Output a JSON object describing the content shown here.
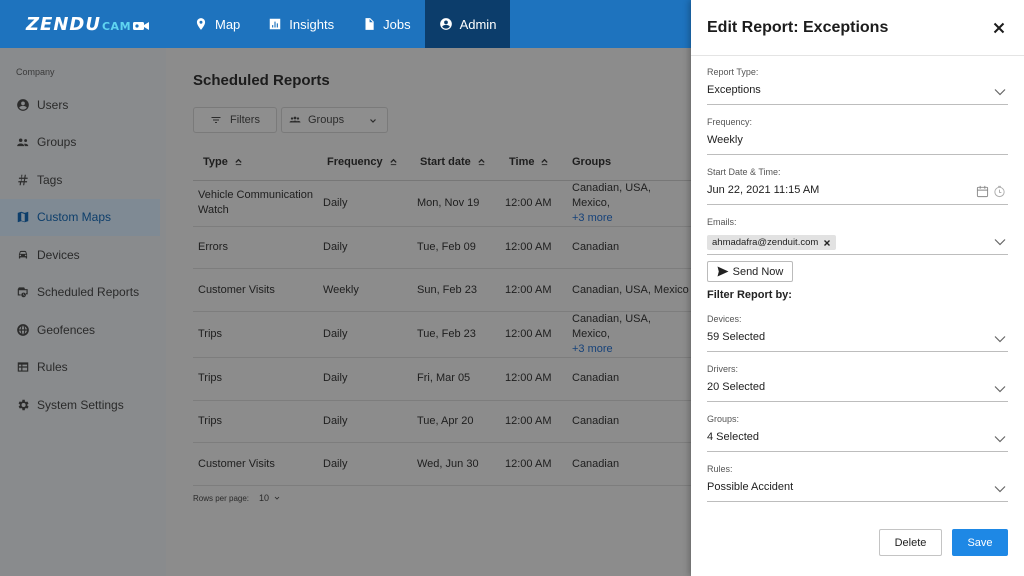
{
  "brand": {
    "main": "ZENDU",
    "sub": "CAM"
  },
  "colors": {
    "topbar": "#1e73be",
    "nav_active": "#0c3d6b",
    "primary_button": "#1e88e5",
    "link": "#16427a"
  },
  "nav": [
    {
      "label": "Map",
      "icon": "map-pin-icon"
    },
    {
      "label": "Insights",
      "icon": "bar-chart-icon"
    },
    {
      "label": "Jobs",
      "icon": "document-icon"
    },
    {
      "label": "Admin",
      "icon": "account-icon",
      "active": true
    }
  ],
  "sidebar": {
    "heading": "Company",
    "items": [
      {
        "label": "Users",
        "icon": "user-icon"
      },
      {
        "label": "Groups",
        "icon": "people-icon"
      },
      {
        "label": "Tags",
        "icon": "hash-icon"
      },
      {
        "label": "Custom Maps",
        "icon": "map-icon",
        "active": true
      },
      {
        "label": "Devices",
        "icon": "car-icon"
      },
      {
        "label": "Scheduled Reports",
        "icon": "report-icon"
      },
      {
        "label": "Geofences",
        "icon": "globe-icon"
      },
      {
        "label": "Rules",
        "icon": "grid-icon"
      },
      {
        "label": "System Settings",
        "icon": "gear-icon"
      }
    ]
  },
  "main": {
    "title": "Scheduled Reports",
    "filters_label": "Filters",
    "groups_label": "Groups",
    "columns": [
      "Type",
      "Frequency",
      "Start date",
      "Time",
      "Groups"
    ],
    "rows": [
      {
        "type": "Vehicle Communication Watch",
        "frequency": "Daily",
        "start": "Mon, Nov 19",
        "time": "12:00 AM",
        "groups": "Canadian, USA, Mexico,",
        "more": "+3 more"
      },
      {
        "type": "Errors",
        "frequency": "Daily",
        "start": "Tue, Feb 09",
        "time": "12:00 AM",
        "groups": "Canadian",
        "more": ""
      },
      {
        "type": "Customer Visits",
        "frequency": "Weekly",
        "start": "Sun, Feb 23",
        "time": "12:00 AM",
        "groups": "Canadian, USA, Mexico",
        "more": ""
      },
      {
        "type": "Trips",
        "frequency": "Daily",
        "start": "Tue, Feb 23",
        "time": "12:00 AM",
        "groups": "Canadian, USA, Mexico,",
        "more": "+3 more"
      },
      {
        "type": "Trips",
        "frequency": "Daily",
        "start": "Fri, Mar 05",
        "time": "12:00 AM",
        "groups": "Canadian",
        "more": ""
      },
      {
        "type": "Trips",
        "frequency": "Daily",
        "start": "Tue, Apr 20",
        "time": "12:00 AM",
        "groups": "Canadian",
        "more": ""
      },
      {
        "type": "Customer Visits",
        "frequency": "Daily",
        "start": "Wed, Jun 30",
        "time": "12:00 AM",
        "groups": "Canadian",
        "more": ""
      }
    ],
    "rows_per_page_label": "Rows per page:",
    "rows_per_page_value": "10"
  },
  "panel": {
    "title": "Edit Report: Exceptions",
    "report_type": {
      "label": "Report Type:",
      "value": "Exceptions"
    },
    "frequency": {
      "label": "Frequency:",
      "value": "Weekly"
    },
    "start": {
      "label": "Start Date & Time:",
      "value": "Jun 22, 2021 11:15 AM"
    },
    "emails": {
      "label": "Emails:",
      "chip": "ahmadafra@zenduit.com"
    },
    "send_now": "Send Now",
    "filter_heading": "Filter Report by:",
    "devices": {
      "label": "Devices:",
      "value": "59 Selected"
    },
    "drivers": {
      "label": "Drivers:",
      "value": "20 Selected"
    },
    "groups": {
      "label": "Groups:",
      "value": "4 Selected"
    },
    "rules": {
      "label": "Rules:",
      "value": "Possible Accident"
    },
    "delete_label": "Delete",
    "save_label": "Save"
  }
}
